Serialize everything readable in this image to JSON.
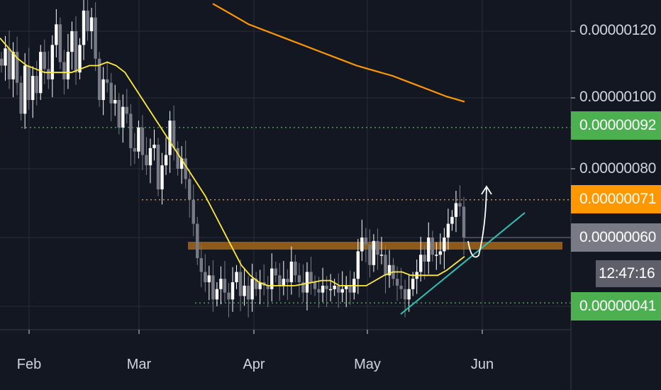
{
  "chart_data": {
    "type": "candlestick",
    "x_ticks": [
      "Feb",
      "Mar",
      "Apr",
      "May",
      "Jun"
    ],
    "y_ticks": [
      "0.00000120",
      "0.00000100",
      "0.00000080",
      "0.00000060",
      "0.00000041"
    ],
    "grid": true,
    "timer": "12:47:16",
    "price_tags": [
      {
        "label": "0.00000092",
        "value": 9.2e-07,
        "color": "#4caf50",
        "line_style": "dotted"
      },
      {
        "label": "0.00000071",
        "value": 7.1e-07,
        "color": "#ff9800",
        "line_style": "dotted"
      },
      {
        "label": "0.00000060",
        "value": 6e-07,
        "color": "#787b86",
        "line_style": "solid"
      },
      {
        "label": "0.00000041",
        "value": 4.1e-07,
        "color": "#4caf50",
        "line_style": "dotted"
      }
    ],
    "resistance_zone": {
      "low": 5.75e-07,
      "high": 5.95e-07,
      "color": "#8d5a1a"
    },
    "series": [
      {
        "type": "candles",
        "date_range": [
          "Jan 26",
          "May 29"
        ],
        "close": [
          1.1,
          1.15,
          1.06,
          1.14,
          1.05,
          0.96,
          1.1,
          1.0,
          1.07,
          1.02,
          1.14,
          1.09,
          1.06,
          1.16,
          1.22,
          1.11,
          1.06,
          1.14,
          1.2,
          1.08,
          1.16,
          1.26,
          1.2,
          1.24,
          1.12,
          1.0,
          1.06,
          1.05,
          0.99,
          1.0,
          0.92,
          0.98,
          0.96,
          0.86,
          0.85,
          0.92,
          0.84,
          0.81,
          0.86,
          0.87,
          0.74,
          0.81,
          0.84,
          0.94,
          0.86,
          0.8,
          0.83,
          0.77,
          0.71,
          0.64,
          0.54,
          0.5,
          0.47,
          0.49,
          0.42,
          0.45,
          0.48,
          0.44,
          0.42,
          0.47,
          0.5,
          0.43,
          0.46,
          0.42,
          0.48,
          0.45,
          0.47,
          0.46,
          0.45,
          0.51,
          0.49,
          0.46,
          0.48,
          0.47,
          0.53,
          0.49,
          0.47,
          0.44,
          0.5,
          0.47,
          0.45,
          0.44,
          0.46,
          0.45,
          0.45,
          0.46,
          0.44,
          0.45,
          0.46,
          0.44,
          0.48,
          0.56,
          0.6,
          0.58,
          0.52,
          0.59,
          0.55,
          0.55,
          0.49,
          0.52,
          0.48,
          0.46,
          0.45,
          0.42,
          0.45,
          0.48,
          0.5,
          0.55,
          0.53,
          0.6,
          0.55,
          0.55,
          0.56,
          0.6,
          0.64,
          0.66,
          0.7,
          0.69,
          0.6
        ]
      },
      {
        "type": "moving_average",
        "period": "short",
        "color": "#ffeb3b",
        "values": [
          1.18,
          1.15,
          1.12,
          1.1,
          1.09,
          1.08,
          1.08,
          1.08,
          1.08,
          1.09,
          1.1,
          1.1,
          1.11,
          1.1,
          1.08,
          1.04,
          1.0,
          0.96,
          0.92,
          0.88,
          0.84,
          0.8,
          0.76,
          0.72,
          0.67,
          0.62,
          0.57,
          0.52,
          0.49,
          0.47,
          0.46,
          0.46,
          0.46,
          0.46,
          0.465,
          0.47,
          0.475,
          0.475,
          0.46,
          0.46,
          0.46,
          0.46,
          0.475,
          0.49,
          0.5,
          0.5,
          0.49,
          0.49,
          0.49,
          0.49,
          0.505,
          0.525,
          0.545
        ]
      },
      {
        "type": "moving_average",
        "period": "long",
        "color": "#ff9800",
        "values": [
          1.28,
          1.25,
          1.22,
          1.2,
          1.18,
          1.16,
          1.14,
          1.12,
          1.1,
          1.085,
          1.07,
          1.05,
          1.03,
          1.01,
          0.995
        ]
      }
    ],
    "trendline": {
      "start": 4e-07,
      "end": 6.6e-07,
      "color": "#2ec4b6"
    },
    "projection_arrow": {
      "target": 7.3e-07,
      "color": "#ffffff"
    }
  }
}
